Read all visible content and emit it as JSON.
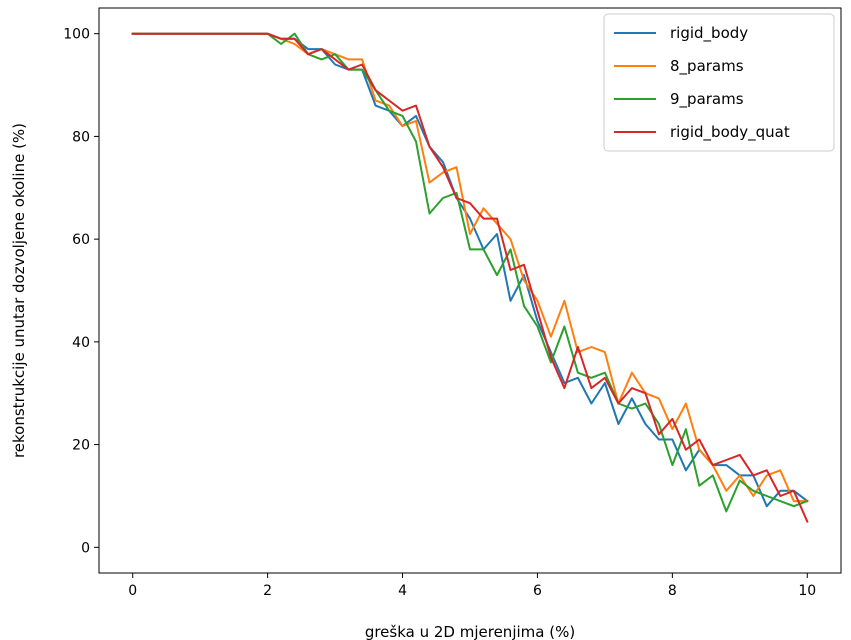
{
  "chart_data": {
    "type": "line",
    "title": "",
    "xlabel": "greška u 2D mjerenjima (%)",
    "ylabel": "rekonstrukcije unutar dozvoljene okoline (%)",
    "xlim": [
      -0.5,
      10.5
    ],
    "ylim": [
      -5,
      105
    ],
    "xticks": [
      0,
      2,
      4,
      6,
      8,
      10
    ],
    "yticks": [
      0,
      20,
      40,
      60,
      80,
      100
    ],
    "xtick_labels": [
      "0",
      "2",
      "4",
      "6",
      "8",
      "10"
    ],
    "ytick_labels": [
      "0",
      "20",
      "40",
      "60",
      "80",
      "100"
    ],
    "grid": false,
    "legend_position": "top-right",
    "x": [
      0,
      0.2,
      0.4,
      0.6,
      0.8,
      1.0,
      1.2,
      1.4,
      1.6,
      1.8,
      2.0,
      2.2,
      2.4,
      2.6,
      2.8,
      3.0,
      3.2,
      3.4,
      3.6,
      3.8,
      4.0,
      4.2,
      4.4,
      4.6,
      4.8,
      5.0,
      5.2,
      5.4,
      5.6,
      5.8,
      6.0,
      6.2,
      6.4,
      6.6,
      6.8,
      7.0,
      7.2,
      7.4,
      7.6,
      7.8,
      8.0,
      8.2,
      8.4,
      8.6,
      8.8,
      9.0,
      9.2,
      9.4,
      9.6,
      9.8,
      10.0
    ],
    "series": [
      {
        "name": "rigid_body",
        "color": "#1f77b4",
        "values": [
          100,
          100,
          100,
          100,
          100,
          100,
          100,
          100,
          100,
          100,
          100,
          99,
          99,
          97,
          97,
          94,
          93,
          93,
          86,
          85,
          82,
          84,
          78,
          75,
          68,
          64,
          58,
          61,
          48,
          53,
          44,
          38,
          32,
          33,
          28,
          32,
          24,
          29,
          24,
          21,
          21,
          15,
          19,
          16,
          16,
          14,
          14,
          8,
          11,
          11,
          9
        ]
      },
      {
        "name": "8_params",
        "color": "#ff7f0e",
        "values": [
          100,
          100,
          100,
          100,
          100,
          100,
          100,
          100,
          100,
          100,
          100,
          99,
          98,
          96,
          97,
          96,
          95,
          95,
          87,
          86,
          82,
          83,
          71,
          73,
          74,
          61,
          66,
          63,
          60,
          52,
          48,
          41,
          48,
          38,
          39,
          38,
          28,
          34,
          30,
          29,
          23,
          28,
          19,
          16,
          11,
          14,
          10,
          14,
          15,
          9,
          9
        ]
      },
      {
        "name": "9_params",
        "color": "#2ca02c",
        "values": [
          100,
          100,
          100,
          100,
          100,
          100,
          100,
          100,
          100,
          100,
          100,
          98,
          100,
          96,
          95,
          96,
          93,
          93,
          89,
          85,
          84,
          79,
          65,
          68,
          69,
          58,
          58,
          53,
          58,
          47,
          43,
          36,
          43,
          34,
          33,
          34,
          28,
          27,
          28,
          24,
          16,
          23,
          12,
          14,
          7,
          13,
          11,
          10,
          9,
          8,
          9
        ]
      },
      {
        "name": "rigid_body_quat",
        "color": "#d62728",
        "values": [
          100,
          100,
          100,
          100,
          100,
          100,
          100,
          100,
          100,
          100,
          100,
          99,
          99,
          96,
          97,
          95,
          93,
          94,
          89,
          87,
          85,
          86,
          78,
          74,
          68,
          67,
          64,
          64,
          54,
          55,
          46,
          37,
          31,
          39,
          31,
          33,
          28,
          31,
          30,
          22,
          25,
          19,
          21,
          16,
          17,
          18,
          14,
          15,
          10,
          11,
          5
        ]
      }
    ]
  }
}
